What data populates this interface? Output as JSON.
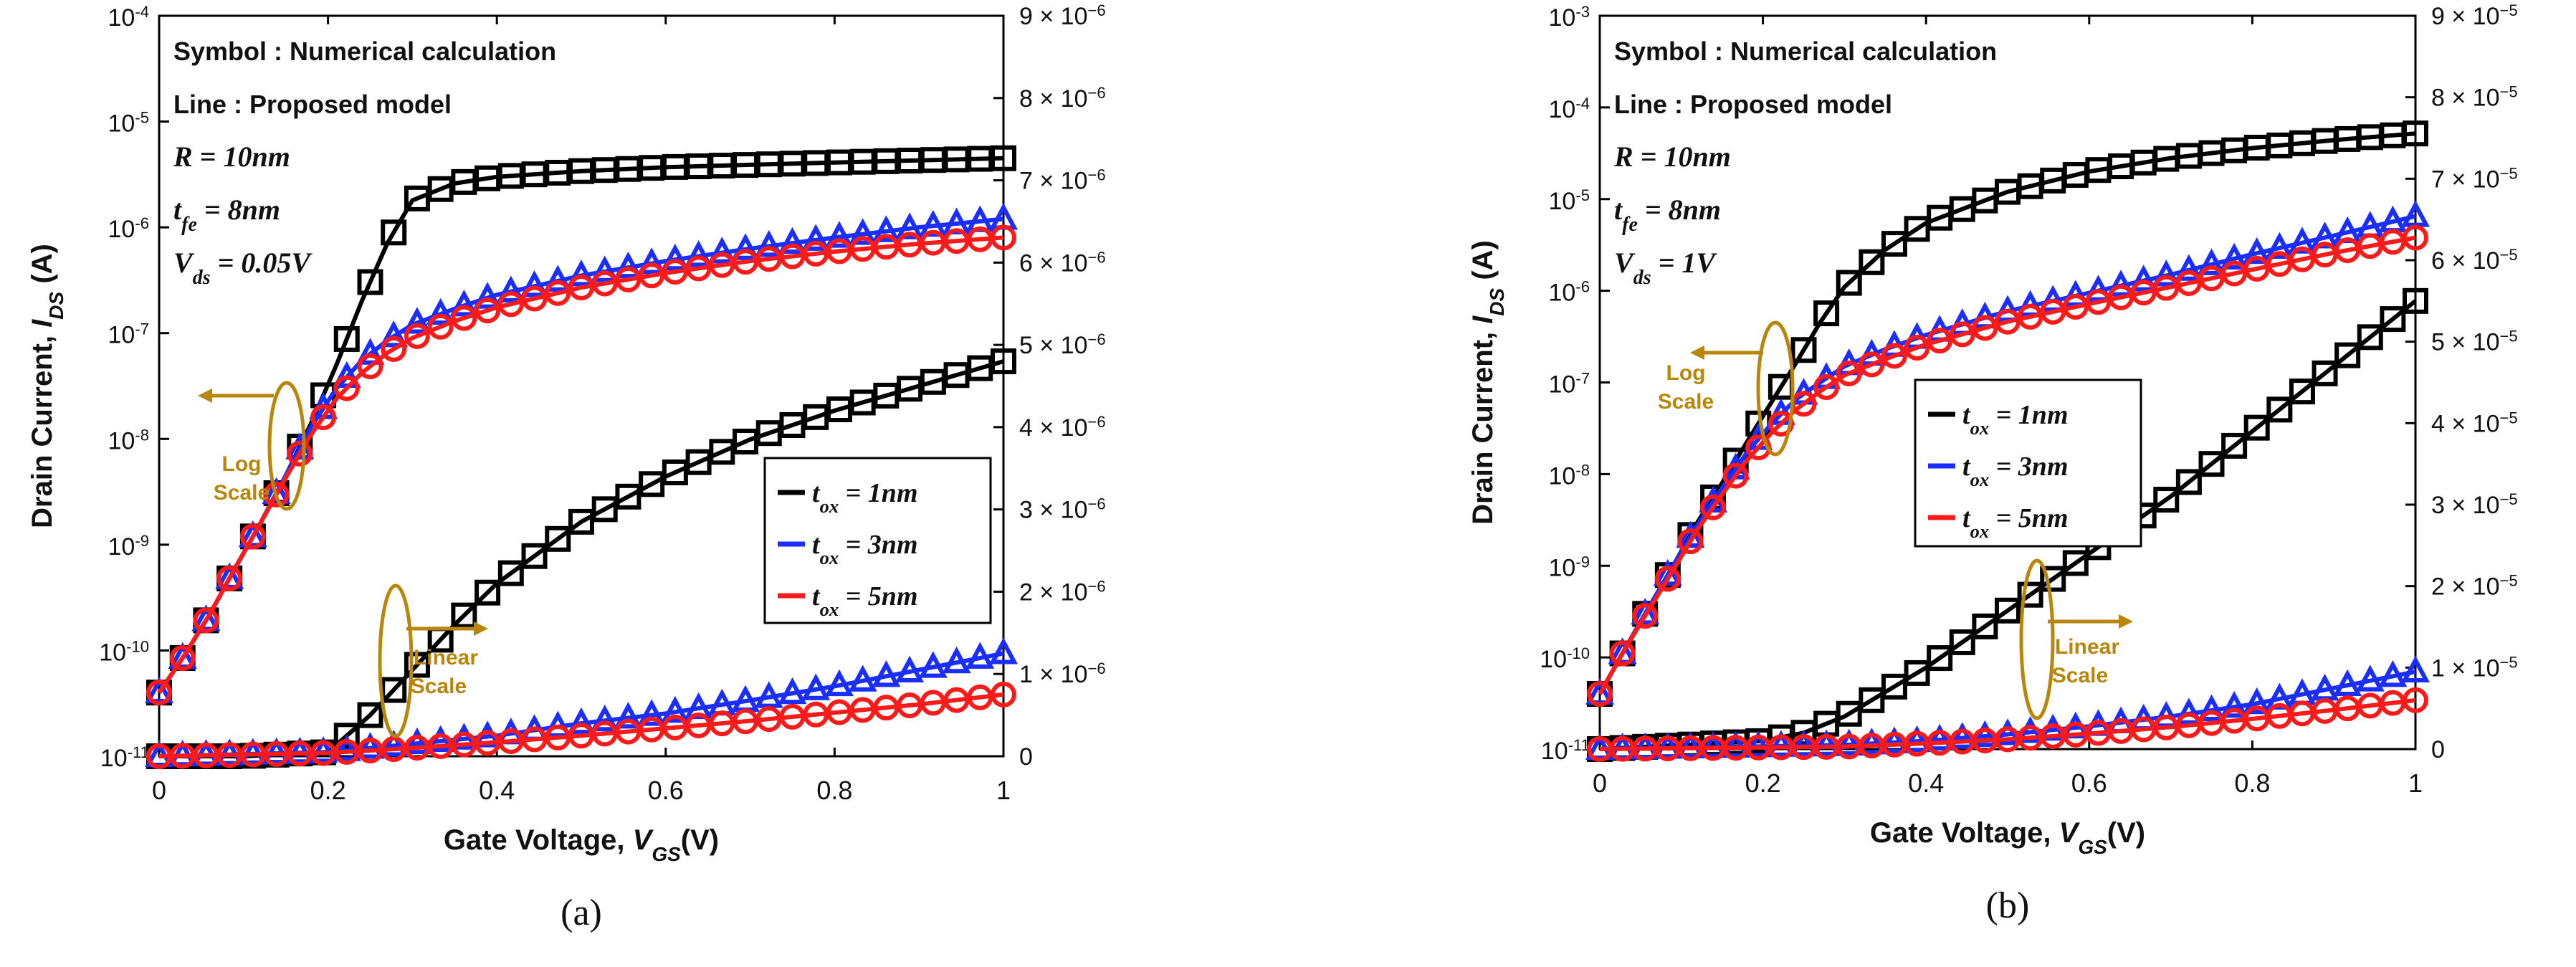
{
  "chart_data": [
    {
      "type": "line",
      "panel_label": "(a)",
      "title": "",
      "xlabel": "Gate Voltage, V_GS(V)",
      "ylabel": "Drain Current, I_DS (A)",
      "ylabel_right": "",
      "xlim": [
        0,
        1
      ],
      "ylim_log": [
        1e-11,
        0.0001
      ],
      "ylim_linear": [
        0,
        9e-06
      ],
      "x_ticks": [
        "0",
        "0.2",
        "0.4",
        "0.6",
        "0.8",
        "1"
      ],
      "y_ticks_left": [
        {
          "mant": "10",
          "exp": "-11"
        },
        {
          "mant": "10",
          "exp": "-10"
        },
        {
          "mant": "10",
          "exp": "-9"
        },
        {
          "mant": "10",
          "exp": "-8"
        },
        {
          "mant": "10",
          "exp": "-7"
        },
        {
          "mant": "10",
          "exp": "-6"
        },
        {
          "mant": "10",
          "exp": "-5"
        },
        {
          "mant": "10",
          "exp": "-4"
        }
      ],
      "y_ticks_right": [
        {
          "mant": "0",
          "exp": ""
        },
        {
          "mant": "1 × 10",
          "exp": "−6"
        },
        {
          "mant": "2 × 10",
          "exp": "−6"
        },
        {
          "mant": "3 × 10",
          "exp": "−6"
        },
        {
          "mant": "4 × 10",
          "exp": "−6"
        },
        {
          "mant": "5 × 10",
          "exp": "−6"
        },
        {
          "mant": "6 × 10",
          "exp": "−6"
        },
        {
          "mant": "7 × 10",
          "exp": "−6"
        },
        {
          "mant": "8 × 10",
          "exp": "−6"
        },
        {
          "mant": "9 × 10",
          "exp": "−6"
        }
      ],
      "annotations": {
        "symbol": "Symbol : Numerical calculation",
        "line": "Line : Proposed model",
        "R": "R = 10nm",
        "tfe": "t_fe = 8nm",
        "vds": "V_ds = 0.05V",
        "log_scale": [
          "Log",
          "Scale"
        ],
        "linear_scale": [
          "Linear",
          "Scale"
        ]
      },
      "legend": [
        {
          "label": "t_ox = 1nm",
          "color": "#000000",
          "marker": "square"
        },
        {
          "label": "t_ox = 3nm",
          "color": "#1a2eff",
          "marker": "triangle"
        },
        {
          "label": "t_ox = 5nm",
          "color": "#ff1a1a",
          "marker": "circle"
        }
      ],
      "log_series": [
        {
          "name": "t_ox = 1nm",
          "color": "#000000",
          "marker": "square",
          "x": [
            0,
            0.03,
            0.06,
            0.09,
            0.12,
            0.15,
            0.18,
            0.21,
            0.24,
            0.27,
            0.3,
            0.35,
            0.4,
            0.5,
            0.6,
            0.7,
            0.8,
            0.9,
            1.0
          ],
          "y": [
            4e-11,
            9e-11,
            2.2e-10,
            6e-10,
            1.6e-09,
            4.5e-09,
            1.4e-08,
            5e-08,
            2e-07,
            7e-07,
            1.8e-06,
            2.6e-06,
            3e-06,
            3.4e-06,
            3.7e-06,
            3.9e-06,
            4.1e-06,
            4.3e-06,
            4.5e-06
          ]
        },
        {
          "name": "t_ox = 3nm",
          "color": "#1a2eff",
          "marker": "triangle",
          "x": [
            0,
            0.03,
            0.06,
            0.09,
            0.12,
            0.15,
            0.18,
            0.21,
            0.24,
            0.27,
            0.3,
            0.35,
            0.4,
            0.5,
            0.6,
            0.7,
            0.8,
            0.9,
            1.0
          ],
          "y": [
            4e-11,
            9e-11,
            2.2e-10,
            6e-10,
            1.6e-09,
            4.5e-09,
            1.3e-08,
            3e-08,
            5.5e-08,
            8.5e-08,
            1.2e-07,
            1.7e-07,
            2.3e-07,
            3.5e-07,
            4.8e-07,
            6.3e-07,
            8e-07,
            1e-06,
            1.2e-06
          ]
        },
        {
          "name": "t_ox = 5nm",
          "color": "#ff1a1a",
          "marker": "circle",
          "x": [
            0,
            0.03,
            0.06,
            0.09,
            0.12,
            0.15,
            0.18,
            0.21,
            0.24,
            0.27,
            0.3,
            0.35,
            0.4,
            0.5,
            0.6,
            0.7,
            0.8,
            0.9,
            1.0
          ],
          "y": [
            4e-11,
            9e-11,
            2.2e-10,
            6e-10,
            1.6e-09,
            4.3e-09,
            1.1e-08,
            2.4e-08,
            4.2e-08,
            6.5e-08,
            9e-08,
            1.3e-07,
            1.75e-07,
            2.7e-07,
            3.7e-07,
            4.8e-07,
            5.9e-07,
            7e-07,
            8e-07
          ]
        }
      ],
      "linear_series": [
        {
          "name": "t_ox = 1nm",
          "color": "#000000",
          "marker": "square",
          "x": [
            0,
            0.1,
            0.2,
            0.25,
            0.3,
            0.35,
            0.4,
            0.5,
            0.6,
            0.7,
            0.8,
            0.9,
            1.0
          ],
          "y": [
            0,
            0,
            5e-08,
            5e-07,
            1.05e-06,
            1.6e-06,
            2.1e-06,
            2.85e-06,
            3.4e-06,
            3.85e-06,
            4.2e-06,
            4.5e-06,
            4.8e-06
          ]
        },
        {
          "name": "t_ox = 3nm",
          "color": "#1a2eff",
          "marker": "triangle",
          "x": [
            0,
            0.2,
            0.3,
            0.4,
            0.5,
            0.6,
            0.7,
            0.8,
            0.9,
            1.0
          ],
          "y": [
            0,
            5e-08,
            1.5e-07,
            2.5e-07,
            4e-07,
            5.2e-07,
            6.8e-07,
            8.5e-07,
            1.05e-06,
            1.25e-06
          ]
        },
        {
          "name": "t_ox = 5nm",
          "color": "#ff1a1a",
          "marker": "circle",
          "x": [
            0,
            0.2,
            0.3,
            0.4,
            0.5,
            0.6,
            0.7,
            0.8,
            0.9,
            1.0
          ],
          "y": [
            0,
            4e-08,
            1e-07,
            1.7e-07,
            2.5e-07,
            3.4e-07,
            4.3e-07,
            5.3e-07,
            6.3e-07,
            7.5e-07
          ]
        }
      ]
    },
    {
      "type": "line",
      "panel_label": "(b)",
      "title": "",
      "xlabel": "Gate Voltage, V_GS(V)",
      "ylabel": "Drain Current, I_DS (A)",
      "xlim": [
        0,
        1
      ],
      "ylim_log": [
        1e-11,
        0.001
      ],
      "ylim_linear": [
        0,
        9e-05
      ],
      "x_ticks": [
        "0",
        "0.2",
        "0.4",
        "0.6",
        "0.8",
        "1"
      ],
      "y_ticks_left": [
        {
          "mant": "10",
          "exp": "-11"
        },
        {
          "mant": "10",
          "exp": "-10"
        },
        {
          "mant": "10",
          "exp": "-9"
        },
        {
          "mant": "10",
          "exp": "-8"
        },
        {
          "mant": "10",
          "exp": "-7"
        },
        {
          "mant": "10",
          "exp": "-6"
        },
        {
          "mant": "10",
          "exp": "-5"
        },
        {
          "mant": "10",
          "exp": "-4"
        },
        {
          "mant": "10",
          "exp": "-3"
        }
      ],
      "y_ticks_right": [
        {
          "mant": "0",
          "exp": ""
        },
        {
          "mant": "1 × 10",
          "exp": "−5"
        },
        {
          "mant": "2 × 10",
          "exp": "−5"
        },
        {
          "mant": "3 × 10",
          "exp": "−5"
        },
        {
          "mant": "4 × 10",
          "exp": "−5"
        },
        {
          "mant": "5 × 10",
          "exp": "−5"
        },
        {
          "mant": "6 × 10",
          "exp": "−5"
        },
        {
          "mant": "7 × 10",
          "exp": "−5"
        },
        {
          "mant": "8 × 10",
          "exp": "−5"
        },
        {
          "mant": "9 × 10",
          "exp": "−5"
        }
      ],
      "annotations": {
        "symbol": "Symbol : Numerical calculation",
        "line": "Line : Proposed model",
        "R": "R = 10nm",
        "tfe": "t_fe = 8nm",
        "vds": "V_ds = 1V",
        "log_scale": [
          "Log",
          "Scale"
        ],
        "linear_scale": [
          "Linear",
          "Scale"
        ]
      },
      "legend": [
        {
          "label": "t_ox = 1nm",
          "color": "#000000",
          "marker": "square"
        },
        {
          "label": "t_ox = 3nm",
          "color": "#1a2eff",
          "marker": "triangle"
        },
        {
          "label": "t_ox = 5nm",
          "color": "#ff1a1a",
          "marker": "circle"
        }
      ],
      "log_series": [
        {
          "name": "t_ox = 1nm",
          "color": "#000000",
          "marker": "square",
          "x": [
            0,
            0.03,
            0.06,
            0.09,
            0.12,
            0.15,
            0.18,
            0.21,
            0.24,
            0.27,
            0.3,
            0.35,
            0.4,
            0.5,
            0.6,
            0.7,
            0.8,
            0.9,
            1.0
          ],
          "y": [
            4e-11,
            1.2e-10,
            3.5e-10,
            1e-09,
            3e-09,
            8e-09,
            2.2e-08,
            6e-08,
            1.6e-07,
            4.5e-07,
            1.1e-06,
            2.8e-06,
            5.5e-06,
            1.2e-05,
            2e-05,
            2.8e-05,
            3.6e-05,
            4.4e-05,
            5.2e-05
          ]
        },
        {
          "name": "t_ox = 3nm",
          "color": "#1a2eff",
          "marker": "triangle",
          "x": [
            0,
            0.03,
            0.06,
            0.09,
            0.12,
            0.15,
            0.18,
            0.21,
            0.24,
            0.27,
            0.3,
            0.35,
            0.4,
            0.5,
            0.6,
            0.7,
            0.8,
            0.9,
            1.0
          ],
          "y": [
            4e-11,
            1.2e-10,
            3.5e-10,
            1e-09,
            2.8e-09,
            7e-09,
            1.7e-08,
            3.5e-08,
            6.5e-08,
            1e-07,
            1.5e-07,
            2.3e-07,
            3.3e-07,
            6e-07,
            9.5e-07,
            1.5e-06,
            2.5e-06,
            4e-06,
            6.5e-06
          ]
        },
        {
          "name": "t_ox = 5nm",
          "color": "#ff1a1a",
          "marker": "circle",
          "x": [
            0,
            0.03,
            0.06,
            0.09,
            0.12,
            0.15,
            0.18,
            0.21,
            0.24,
            0.27,
            0.3,
            0.35,
            0.4,
            0.5,
            0.6,
            0.7,
            0.8,
            0.9,
            1.0
          ],
          "y": [
            4e-11,
            1.2e-10,
            3.3e-10,
            9e-10,
            2.5e-09,
            6e-09,
            1.4e-08,
            2.8e-08,
            5e-08,
            8e-08,
            1.2e-07,
            1.8e-07,
            2.6e-07,
            4.6e-07,
            7.2e-07,
            1.1e-06,
            1.7e-06,
            2.6e-06,
            3.8e-06
          ]
        }
      ],
      "linear_series": [
        {
          "name": "t_ox = 1nm",
          "color": "#000000",
          "marker": "square",
          "x": [
            0,
            0.2,
            0.25,
            0.3,
            0.35,
            0.4,
            0.45,
            0.5,
            0.55,
            0.6,
            0.65,
            0.7,
            0.75,
            0.8,
            0.85,
            0.9,
            0.95,
            1.0
          ],
          "y": [
            0,
            1e-06,
            2e-06,
            4e-06,
            7e-06,
            1e-05,
            1.35e-05,
            1.7e-05,
            2.05e-05,
            2.4e-05,
            2.75e-05,
            3.1e-05,
            3.5e-05,
            3.9e-05,
            4.3e-05,
            4.7e-05,
            5.1e-05,
            5.5e-05
          ]
        },
        {
          "name": "t_ox = 3nm",
          "color": "#1a2eff",
          "marker": "triangle",
          "x": [
            0,
            0.3,
            0.4,
            0.5,
            0.6,
            0.7,
            0.8,
            0.9,
            1.0
          ],
          "y": [
            0,
            5e-07,
            1e-06,
            1.8e-06,
            2.8e-06,
            4e-06,
            5.5e-06,
            7.5e-06,
            9.5e-06
          ]
        },
        {
          "name": "t_ox = 5nm",
          "color": "#ff1a1a",
          "marker": "circle",
          "x": [
            0,
            0.3,
            0.4,
            0.5,
            0.6,
            0.7,
            0.8,
            0.9,
            1.0
          ],
          "y": [
            0,
            3e-07,
            7e-07,
            1.2e-06,
            1.9e-06,
            2.7e-06,
            3.7e-06,
            4.8e-06,
            6e-06
          ]
        }
      ]
    }
  ]
}
